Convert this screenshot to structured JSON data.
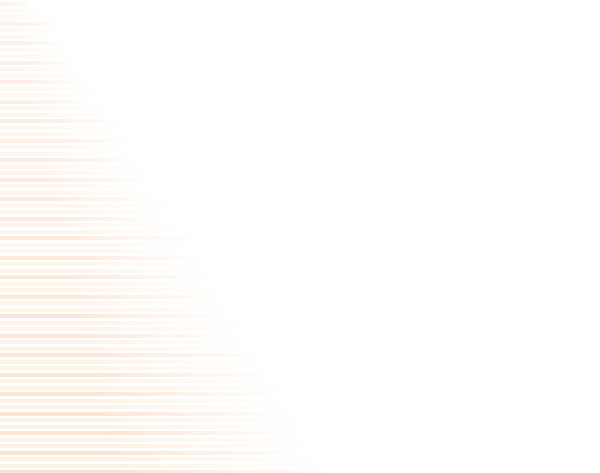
{
  "background": {
    "base_color": "#ffffff",
    "stripe_color": "#fcdcc4",
    "stripe_color_light": "#feeede"
  }
}
